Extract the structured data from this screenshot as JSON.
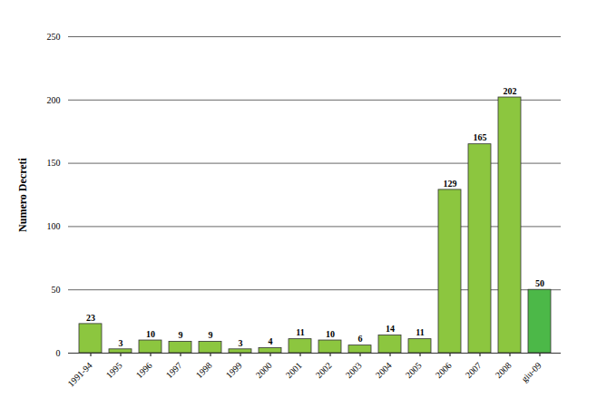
{
  "chart_data": {
    "type": "bar",
    "y_label": "Numero Decreti",
    "categories": [
      "1991-94",
      "1995",
      "1996",
      "1997",
      "1998",
      "1999",
      "2000",
      "2001",
      "2002",
      "2003",
      "2004",
      "2005",
      "2006",
      "2007",
      "2008",
      "giu-09"
    ],
    "values": [
      23,
      3,
      10,
      9,
      9,
      3,
      4,
      11,
      10,
      6,
      14,
      11,
      129,
      165,
      202,
      50
    ],
    "colors": [
      "#8cc63f",
      "#8cc63f",
      "#8cc63f",
      "#8cc63f",
      "#8cc63f",
      "#8cc63f",
      "#8cc63f",
      "#8cc63f",
      "#8cc63f",
      "#8cc63f",
      "#8cc63f",
      "#8cc63f",
      "#8cc63f",
      "#8cc63f",
      "#8cc63f",
      "#4cb848"
    ],
    "ylim": [
      0,
      250
    ],
    "yticks": [
      0,
      50,
      100,
      150,
      200,
      250
    ],
    "grid": true,
    "data_labels": true
  }
}
